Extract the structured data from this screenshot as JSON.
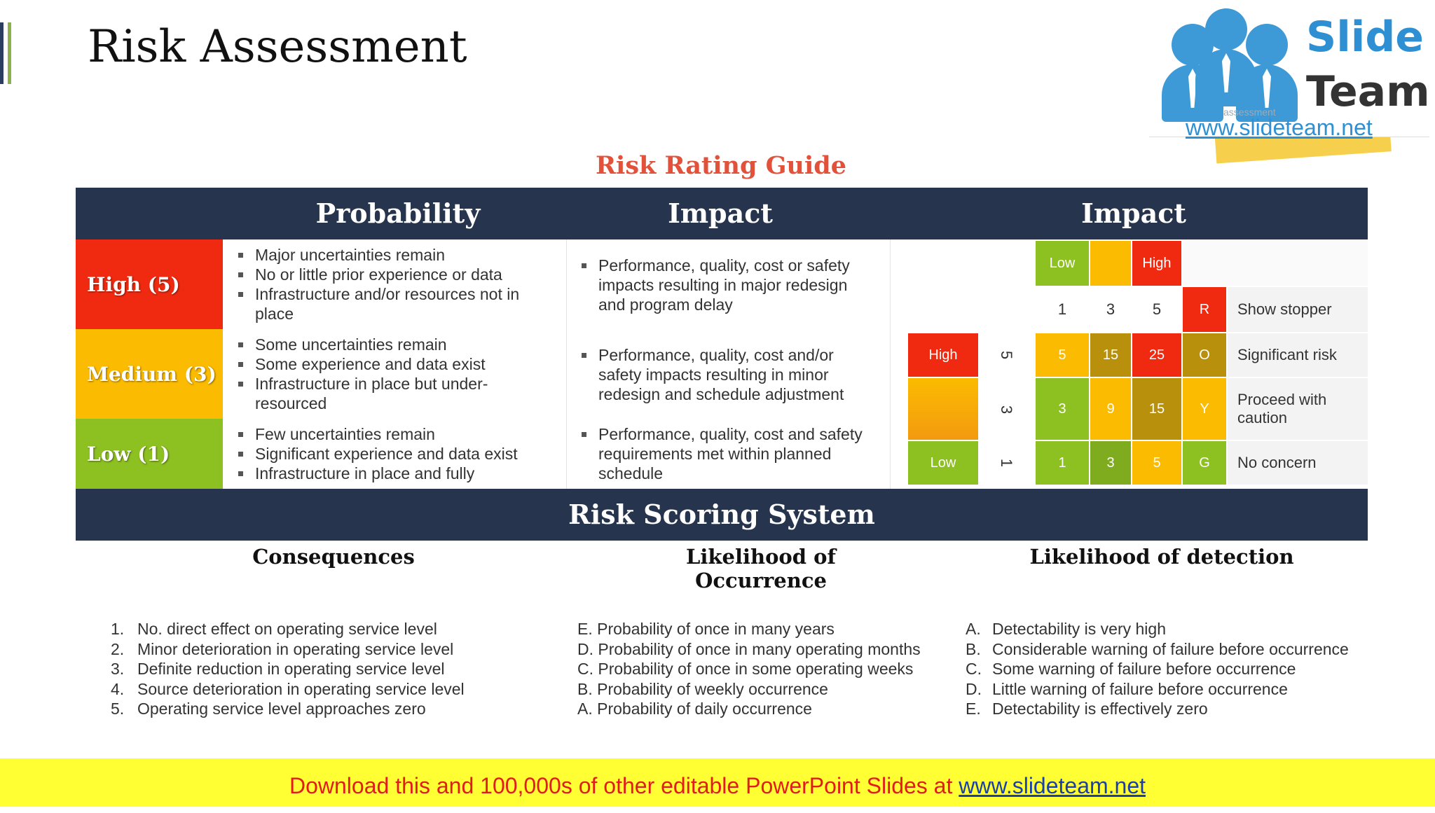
{
  "title": "Risk Assessment",
  "colors": {
    "accent1": "#2d3f61",
    "accent2": "#8db24a",
    "navy": "#26344d",
    "red": "#ef2a10",
    "amber": "#fbbb00",
    "green": "#8dc021",
    "dark_green": "#7fac1e",
    "olive": "#b8900c",
    "title_red": "#e2513a"
  },
  "logo": {
    "word1": "Slide",
    "word2": "Team",
    "url": "www.slideteam.net",
    "faint": "assessment"
  },
  "rating_guide": {
    "title": "Risk Rating Guide",
    "headers": [
      "Probability",
      "Impact",
      "Impact"
    ],
    "levels": [
      {
        "label": "High (5)",
        "probability": [
          "Major uncertainties remain",
          "No or little prior experience or data",
          "Infrastructure and/or resources not in place"
        ],
        "impact": [
          "Performance, quality, cost or safety impacts resulting in major redesign and program delay"
        ]
      },
      {
        "label": "Medium (3)",
        "probability": [
          "Some uncertainties remain",
          "Some experience and data exist",
          "Infrastructure in place but under-resourced"
        ],
        "impact": [
          "Performance, quality, cost and/or safety impacts resulting in minor redesign and schedule adjustment"
        ]
      },
      {
        "label": "Low (1)",
        "probability": [
          "Few uncertainties remain",
          "Significant experience and data exist",
          "Infrastructure in place and fully"
        ],
        "impact": [
          "Performance, quality, cost and safety requirements met within planned schedule"
        ]
      }
    ],
    "matrix": {
      "top_scale": [
        "Low",
        "",
        "High"
      ],
      "col_numbers": [
        "1",
        "3",
        "5"
      ],
      "side_scale": [
        "High",
        "",
        "Low"
      ],
      "row_numbers": [
        "5",
        "3",
        "1"
      ],
      "cells": [
        [
          "5",
          "15",
          "25"
        ],
        [
          "3",
          "9",
          "15"
        ],
        [
          "1",
          "3",
          "5"
        ]
      ],
      "legend": [
        {
          "code": "R",
          "text": "Show stopper"
        },
        {
          "code": "O",
          "text": "Significant risk"
        },
        {
          "code": "Y",
          "text": "Proceed with caution"
        },
        {
          "code": "G",
          "text": "No concern"
        }
      ]
    }
  },
  "scoring": {
    "title": "Risk Scoring System",
    "columns": [
      {
        "header": "Consequences",
        "items": [
          {
            "mark": "1.",
            "text": "No. direct effect on operating service level"
          },
          {
            "mark": "2.",
            "text": "Minor deterioration in operating service level"
          },
          {
            "mark": "3.",
            "text": "Definite reduction in operating service level"
          },
          {
            "mark": "4.",
            "text": "Source deterioration in operating service level"
          },
          {
            "mark": "5.",
            "text": "Operating service level approaches zero"
          }
        ]
      },
      {
        "header": "Likelihood of Occurrence",
        "items": [
          {
            "mark": "",
            "text": "E. Probability of once in many years"
          },
          {
            "mark": "",
            "text": "D. Probability of once in many operating months"
          },
          {
            "mark": "",
            "text": "C. Probability of once in some operating weeks"
          },
          {
            "mark": "",
            "text": "B. Probability of weekly occurrence"
          },
          {
            "mark": "",
            "text": "A. Probability of daily occurrence"
          }
        ]
      },
      {
        "header": "Likelihood of detection",
        "items": [
          {
            "mark": "A.",
            "text": "Detectability is very high"
          },
          {
            "mark": "B.",
            "text": "Considerable warning of failure before occurrence"
          },
          {
            "mark": "C.",
            "text": "Some warning of failure before occurrence"
          },
          {
            "mark": "D.",
            "text": "Little warning of failure before occurrence"
          },
          {
            "mark": "E.",
            "text": "Detectability is effectively zero"
          }
        ]
      }
    ]
  },
  "footer": {
    "text": "Download this and 100,000s of other editable PowerPoint Slides at ",
    "link": "www.slideteam.net"
  }
}
